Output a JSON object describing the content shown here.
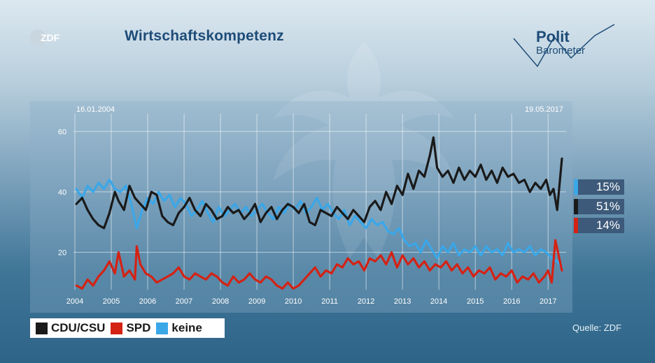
{
  "header": {
    "logo_text": "ZDF",
    "title": "Wirtschaftskompetenz",
    "brand_line1": "Polit",
    "brand_line2": "Barometer"
  },
  "date_start": "16.01.2004",
  "date_end": "19.05.2017",
  "source": "Quelle: ZDF",
  "current_values": [
    {
      "series": "keine",
      "label": "15%",
      "color": "#3aa7e8"
    },
    {
      "series": "CDU/CSU",
      "label": "51%",
      "color": "#1a1a1a"
    },
    {
      "series": "SPD",
      "label": "14%",
      "color": "#d42214"
    }
  ],
  "chart_data": {
    "type": "line",
    "x_ticks": [
      "2004",
      "2005",
      "2006",
      "2007",
      "2008",
      "2009",
      "2010",
      "2011",
      "2012",
      "2013",
      "2014",
      "2015",
      "2016",
      "2017"
    ],
    "xlim": [
      2004.04,
      2017.38
    ],
    "y_ticks": [
      "20",
      "40",
      "60"
    ],
    "ylim": [
      0,
      70
    ],
    "grid": true,
    "legend_position": "bottom-left",
    "series": [
      {
        "name": "CDU/CSU",
        "color": "#1a1a1a",
        "x": [
          2004.04,
          2004.2,
          2004.35,
          2004.5,
          2004.65,
          2004.8,
          2004.95,
          2005.1,
          2005.2,
          2005.35,
          2005.5,
          2005.65,
          2005.8,
          2005.95,
          2006.1,
          2006.25,
          2006.4,
          2006.55,
          2006.7,
          2006.85,
          2007.0,
          2007.15,
          2007.3,
          2007.45,
          2007.6,
          2007.75,
          2007.9,
          2008.05,
          2008.2,
          2008.35,
          2008.5,
          2008.65,
          2008.8,
          2008.95,
          2009.1,
          2009.25,
          2009.4,
          2009.55,
          2009.7,
          2009.85,
          2010.0,
          2010.15,
          2010.3,
          2010.45,
          2010.6,
          2010.75,
          2010.9,
          2011.05,
          2011.2,
          2011.35,
          2011.5,
          2011.65,
          2011.8,
          2011.95,
          2012.1,
          2012.25,
          2012.4,
          2012.55,
          2012.7,
          2012.85,
          2013.0,
          2013.15,
          2013.3,
          2013.45,
          2013.6,
          2013.75,
          2013.85,
          2013.95,
          2014.1,
          2014.25,
          2014.4,
          2014.55,
          2014.7,
          2014.85,
          2015.0,
          2015.15,
          2015.3,
          2015.45,
          2015.6,
          2015.75,
          2015.9,
          2016.05,
          2016.2,
          2016.35,
          2016.5,
          2016.65,
          2016.8,
          2016.95,
          2017.05,
          2017.15,
          2017.25,
          2017.38
        ],
        "values": [
          36,
          38,
          34,
          31,
          29,
          28,
          33,
          40,
          37,
          34,
          42,
          38,
          36,
          34,
          40,
          39,
          32,
          30,
          29,
          33,
          35,
          38,
          34,
          32,
          36,
          34,
          31,
          32,
          35,
          33,
          34,
          31,
          33,
          36,
          30,
          33,
          35,
          31,
          34,
          36,
          35,
          33,
          36,
          30,
          29,
          34,
          33,
          32,
          35,
          33,
          31,
          34,
          32,
          30,
          35,
          37,
          34,
          40,
          36,
          42,
          39,
          46,
          41,
          47,
          45,
          52,
          58,
          48,
          45,
          47,
          43,
          48,
          44,
          47,
          45,
          49,
          44,
          47,
          43,
          48,
          45,
          46,
          43,
          44,
          40,
          43,
          41,
          44,
          39,
          41,
          34,
          51
        ]
      },
      {
        "name": "SPD",
        "color": "#d42214",
        "x": [
          2004.04,
          2004.2,
          2004.35,
          2004.5,
          2004.65,
          2004.8,
          2004.95,
          2005.1,
          2005.2,
          2005.35,
          2005.5,
          2005.65,
          2005.7,
          2005.8,
          2005.95,
          2006.1,
          2006.25,
          2006.4,
          2006.55,
          2006.7,
          2006.85,
          2007.0,
          2007.15,
          2007.3,
          2007.45,
          2007.6,
          2007.75,
          2007.9,
          2008.05,
          2008.2,
          2008.35,
          2008.5,
          2008.65,
          2008.8,
          2008.95,
          2009.1,
          2009.25,
          2009.4,
          2009.55,
          2009.7,
          2009.85,
          2010.0,
          2010.15,
          2010.3,
          2010.45,
          2010.6,
          2010.75,
          2010.9,
          2011.05,
          2011.2,
          2011.35,
          2011.5,
          2011.65,
          2011.8,
          2011.95,
          2012.1,
          2012.25,
          2012.4,
          2012.55,
          2012.7,
          2012.85,
          2013.0,
          2013.15,
          2013.3,
          2013.45,
          2013.6,
          2013.75,
          2013.9,
          2014.05,
          2014.2,
          2014.35,
          2014.5,
          2014.65,
          2014.8,
          2014.95,
          2015.1,
          2015.25,
          2015.4,
          2015.55,
          2015.7,
          2015.85,
          2016.0,
          2016.15,
          2016.3,
          2016.45,
          2016.6,
          2016.75,
          2016.9,
          2017.0,
          2017.1,
          2017.2,
          2017.38
        ],
        "values": [
          9,
          8,
          11,
          9,
          12,
          14,
          17,
          13,
          20,
          12,
          14,
          11,
          22,
          16,
          13,
          12,
          10,
          11,
          12,
          13,
          15,
          12,
          11,
          13,
          12,
          11,
          13,
          12,
          10,
          9,
          12,
          10,
          11,
          13,
          11,
          10,
          12,
          11,
          9,
          8,
          10,
          8,
          9,
          11,
          13,
          15,
          12,
          14,
          13,
          16,
          15,
          18,
          16,
          17,
          14,
          18,
          17,
          19,
          16,
          20,
          15,
          19,
          16,
          18,
          15,
          17,
          14,
          16,
          15,
          17,
          14,
          16,
          13,
          15,
          12,
          14,
          13,
          15,
          11,
          13,
          12,
          14,
          10,
          12,
          11,
          13,
          10,
          12,
          14,
          10,
          24,
          14
        ]
      },
      {
        "name": "keine",
        "color": "#3aa7e8",
        "x": [
          2004.04,
          2004.2,
          2004.35,
          2004.5,
          2004.65,
          2004.8,
          2004.95,
          2005.1,
          2005.25,
          2005.4,
          2005.55,
          2005.7,
          2005.85,
          2006.0,
          2006.15,
          2006.3,
          2006.45,
          2006.6,
          2006.75,
          2006.9,
          2007.05,
          2007.2,
          2007.35,
          2007.5,
          2007.65,
          2007.8,
          2007.95,
          2008.1,
          2008.25,
          2008.4,
          2008.55,
          2008.7,
          2008.85,
          2009.0,
          2009.15,
          2009.3,
          2009.45,
          2009.6,
          2009.75,
          2009.9,
          2010.05,
          2010.2,
          2010.35,
          2010.5,
          2010.65,
          2010.8,
          2010.95,
          2011.1,
          2011.25,
          2011.4,
          2011.55,
          2011.7,
          2011.85,
          2012.0,
          2012.15,
          2012.3,
          2012.45,
          2012.6,
          2012.75,
          2012.9,
          2013.05,
          2013.2,
          2013.35,
          2013.5,
          2013.65,
          2013.8,
          2013.95,
          2014.1,
          2014.25,
          2014.4,
          2014.55,
          2014.7,
          2014.85,
          2015.0,
          2015.15,
          2015.3,
          2015.45,
          2015.6,
          2015.75,
          2015.9,
          2016.05,
          2016.2,
          2016.35,
          2016.5,
          2016.65,
          2016.8,
          2016.95,
          2017.1,
          2017.25,
          2017.38
        ],
        "values": [
          41,
          38,
          42,
          40,
          43,
          41,
          44,
          41,
          40,
          42,
          36,
          28,
          34,
          38,
          36,
          40,
          37,
          39,
          35,
          38,
          36,
          32,
          34,
          37,
          33,
          30,
          35,
          32,
          34,
          36,
          33,
          35,
          32,
          34,
          36,
          33,
          31,
          35,
          33,
          36,
          34,
          37,
          33,
          35,
          38,
          34,
          36,
          33,
          31,
          34,
          29,
          32,
          30,
          28,
          31,
          29,
          30,
          27,
          26,
          28,
          24,
          22,
          23,
          20,
          24,
          21,
          18,
          22,
          20,
          23,
          19,
          21,
          20,
          22,
          19,
          22,
          20,
          21,
          19,
          23,
          20,
          21,
          20,
          22,
          19,
          21,
          20,
          18,
          17,
          15
        ]
      }
    ]
  }
}
